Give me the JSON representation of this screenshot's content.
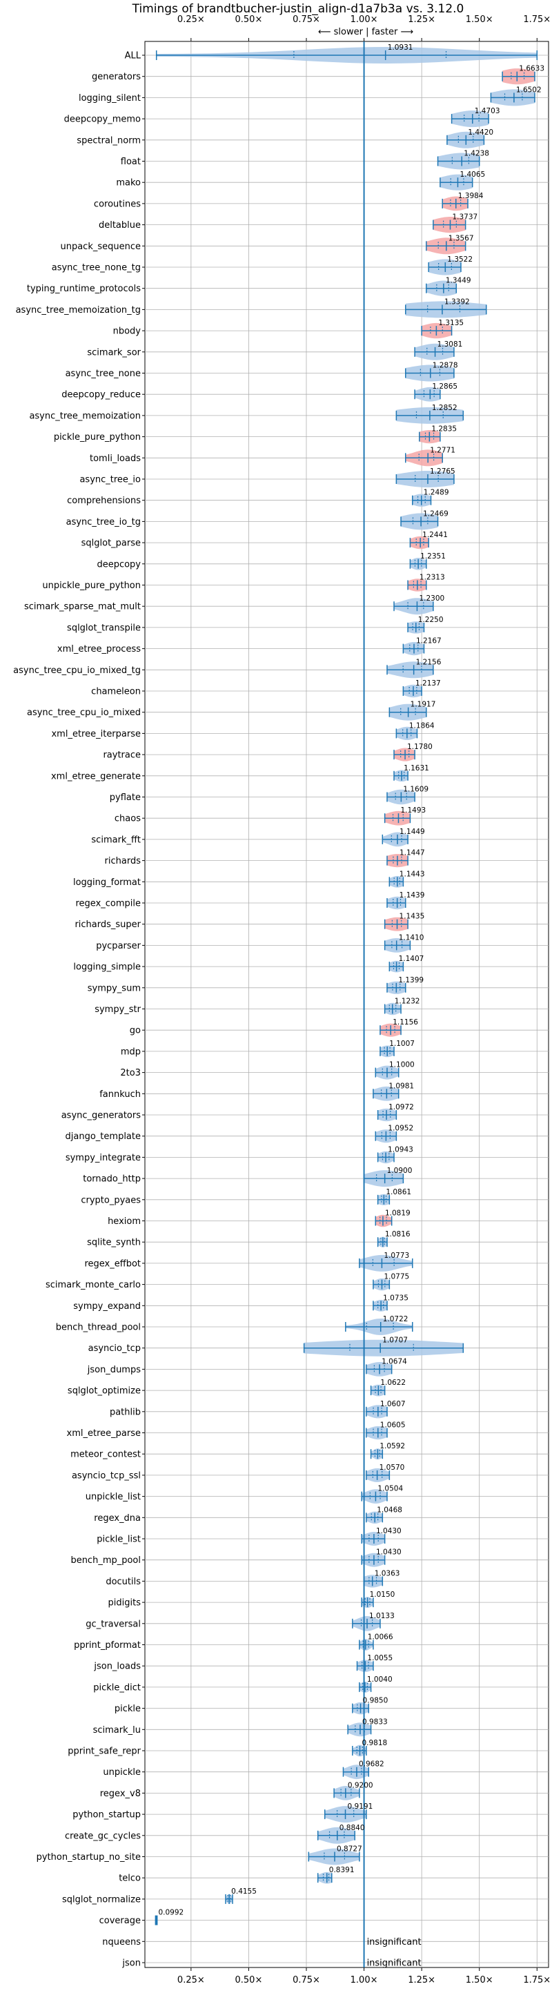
{
  "chart_data": {
    "type": "violin",
    "title": "Timings of brandtbucher-justin_align-d1a7b3a vs. 3.12.0",
    "subtitle": "⟵ slower  |  faster ⟶",
    "xlim": [
      0.05,
      1.8
    ],
    "xticks": [
      0.25,
      0.5,
      0.75,
      1.0,
      1.25,
      1.5,
      1.75
    ],
    "xtick_labels": [
      "0.25×",
      "0.50×",
      "0.75×",
      "1.00×",
      "1.25×",
      "1.50×",
      "1.75×"
    ],
    "reference_line": 1.0,
    "grid": true,
    "colors": {
      "violin": "#a9c8e8",
      "significant": "#f4a6a6",
      "line": "#1f77b4",
      "grid": "#b0b0b0"
    },
    "insignificant_label": "insignificant",
    "benchmarks": [
      {
        "name": "ALL",
        "value": 1.0931,
        "label": "1.0931",
        "min": 0.1,
        "max": 1.75,
        "spread": 0.35,
        "hl": false
      },
      {
        "name": "generators",
        "value": 1.6633,
        "label": "1.6633",
        "min": 1.6,
        "max": 1.74,
        "spread": 0.07,
        "hl": true
      },
      {
        "name": "logging_silent",
        "value": 1.6502,
        "label": "1.6502",
        "min": 1.55,
        "max": 1.74,
        "spread": 0.09,
        "hl": false
      },
      {
        "name": "deepcopy_memo",
        "value": 1.4703,
        "label": "1.4703",
        "min": 1.38,
        "max": 1.54,
        "spread": 0.08,
        "hl": false
      },
      {
        "name": "spectral_norm",
        "value": 1.442,
        "label": "1.4420",
        "min": 1.36,
        "max": 1.52,
        "spread": 0.07,
        "hl": false
      },
      {
        "name": "float",
        "value": 1.4238,
        "label": "1.4238",
        "min": 1.32,
        "max": 1.5,
        "spread": 0.09,
        "hl": false
      },
      {
        "name": "mako",
        "value": 1.4065,
        "label": "1.4065",
        "min": 1.33,
        "max": 1.47,
        "spread": 0.07,
        "hl": false
      },
      {
        "name": "coroutines",
        "value": 1.3984,
        "label": "1.3984",
        "min": 1.34,
        "max": 1.45,
        "spread": 0.05,
        "hl": true
      },
      {
        "name": "deltablue",
        "value": 1.3737,
        "label": "1.3737",
        "min": 1.3,
        "max": 1.44,
        "spread": 0.07,
        "hl": true
      },
      {
        "name": "unpack_sequence",
        "value": 1.3567,
        "label": "1.3567",
        "min": 1.27,
        "max": 1.44,
        "spread": 0.07,
        "hl": true
      },
      {
        "name": "async_tree_none_tg",
        "value": 1.3522,
        "label": "1.3522",
        "min": 1.28,
        "max": 1.42,
        "spread": 0.07,
        "hl": false
      },
      {
        "name": "typing_runtime_protocols",
        "value": 1.3449,
        "label": "1.3449",
        "min": 1.27,
        "max": 1.4,
        "spread": 0.06,
        "hl": false
      },
      {
        "name": "async_tree_memoization_tg",
        "value": 1.3392,
        "label": "1.3392",
        "min": 1.18,
        "max": 1.53,
        "spread": 0.18,
        "hl": false
      },
      {
        "name": "nbody",
        "value": 1.3135,
        "label": "1.3135",
        "min": 1.25,
        "max": 1.38,
        "spread": 0.06,
        "hl": true
      },
      {
        "name": "scimark_sor",
        "value": 1.3081,
        "label": "1.3081",
        "min": 1.22,
        "max": 1.39,
        "spread": 0.07,
        "hl": false
      },
      {
        "name": "async_tree_none",
        "value": 1.2878,
        "label": "1.2878",
        "min": 1.18,
        "max": 1.39,
        "spread": 0.1,
        "hl": false
      },
      {
        "name": "deepcopy_reduce",
        "value": 1.2865,
        "label": "1.2865",
        "min": 1.22,
        "max": 1.33,
        "spread": 0.05,
        "hl": false
      },
      {
        "name": "async_tree_memoization",
        "value": 1.2852,
        "label": "1.2852",
        "min": 1.14,
        "max": 1.43,
        "spread": 0.15,
        "hl": false
      },
      {
        "name": "pickle_pure_python",
        "value": 1.2835,
        "label": "1.2835",
        "min": 1.24,
        "max": 1.33,
        "spread": 0.05,
        "hl": true
      },
      {
        "name": "tomli_loads",
        "value": 1.2771,
        "label": "1.2771",
        "min": 1.18,
        "max": 1.34,
        "spread": 0.06,
        "hl": true
      },
      {
        "name": "async_tree_io",
        "value": 1.2765,
        "label": "1.2765",
        "min": 1.14,
        "max": 1.39,
        "spread": 0.12,
        "hl": false
      },
      {
        "name": "comprehensions",
        "value": 1.2489,
        "label": "1.2489",
        "min": 1.21,
        "max": 1.29,
        "spread": 0.04,
        "hl": false
      },
      {
        "name": "async_tree_io_tg",
        "value": 1.2469,
        "label": "1.2469",
        "min": 1.16,
        "max": 1.32,
        "spread": 0.08,
        "hl": false
      },
      {
        "name": "sqlglot_parse",
        "value": 1.2441,
        "label": "1.2441",
        "min": 1.2,
        "max": 1.28,
        "spread": 0.04,
        "hl": true
      },
      {
        "name": "deepcopy",
        "value": 1.2351,
        "label": "1.2351",
        "min": 1.2,
        "max": 1.27,
        "spread": 0.03,
        "hl": false
      },
      {
        "name": "unpickle_pure_python",
        "value": 1.2313,
        "label": "1.2313",
        "min": 1.19,
        "max": 1.27,
        "spread": 0.04,
        "hl": true
      },
      {
        "name": "scimark_sparse_mat_mult",
        "value": 1.23,
        "label": "1.2300",
        "min": 1.13,
        "max": 1.3,
        "spread": 0.06,
        "hl": false
      },
      {
        "name": "sqlglot_transpile",
        "value": 1.225,
        "label": "1.2250",
        "min": 1.19,
        "max": 1.26,
        "spread": 0.04,
        "hl": false
      },
      {
        "name": "xml_etree_process",
        "value": 1.2167,
        "label": "1.2167",
        "min": 1.17,
        "max": 1.26,
        "spread": 0.04,
        "hl": false
      },
      {
        "name": "async_tree_cpu_io_mixed_tg",
        "value": 1.2156,
        "label": "1.2156",
        "min": 1.1,
        "max": 1.3,
        "spread": 0.08,
        "hl": false
      },
      {
        "name": "chameleon",
        "value": 1.2137,
        "label": "1.2137",
        "min": 1.17,
        "max": 1.25,
        "spread": 0.04,
        "hl": false
      },
      {
        "name": "async_tree_cpu_io_mixed",
        "value": 1.1917,
        "label": "1.1917",
        "min": 1.11,
        "max": 1.27,
        "spread": 0.07,
        "hl": false
      },
      {
        "name": "xml_etree_iterparse",
        "value": 1.1864,
        "label": "1.1864",
        "min": 1.14,
        "max": 1.23,
        "spread": 0.04,
        "hl": false
      },
      {
        "name": "raytrace",
        "value": 1.178,
        "label": "1.1780",
        "min": 1.13,
        "max": 1.22,
        "spread": 0.04,
        "hl": true
      },
      {
        "name": "xml_etree_generate",
        "value": 1.1631,
        "label": "1.1631",
        "min": 1.13,
        "max": 1.19,
        "spread": 0.03,
        "hl": false
      },
      {
        "name": "pyflate",
        "value": 1.1609,
        "label": "1.1609",
        "min": 1.1,
        "max": 1.22,
        "spread": 0.05,
        "hl": false
      },
      {
        "name": "chaos",
        "value": 1.1493,
        "label": "1.1493",
        "min": 1.09,
        "max": 1.2,
        "spread": 0.05,
        "hl": true
      },
      {
        "name": "scimark_fft",
        "value": 1.1449,
        "label": "1.1449",
        "min": 1.08,
        "max": 1.19,
        "spread": 0.04,
        "hl": false
      },
      {
        "name": "richards",
        "value": 1.1447,
        "label": "1.1447",
        "min": 1.1,
        "max": 1.19,
        "spread": 0.05,
        "hl": true
      },
      {
        "name": "logging_format",
        "value": 1.1443,
        "label": "1.1443",
        "min": 1.11,
        "max": 1.17,
        "spread": 0.03,
        "hl": false
      },
      {
        "name": "regex_compile",
        "value": 1.1439,
        "label": "1.1439",
        "min": 1.1,
        "max": 1.18,
        "spread": 0.04,
        "hl": false
      },
      {
        "name": "richards_super",
        "value": 1.1435,
        "label": "1.1435",
        "min": 1.09,
        "max": 1.19,
        "spread": 0.05,
        "hl": true
      },
      {
        "name": "pycparser",
        "value": 1.141,
        "label": "1.1410",
        "min": 1.09,
        "max": 1.2,
        "spread": 0.05,
        "hl": false
      },
      {
        "name": "logging_simple",
        "value": 1.1407,
        "label": "1.1407",
        "min": 1.11,
        "max": 1.17,
        "spread": 0.03,
        "hl": false
      },
      {
        "name": "sympy_sum",
        "value": 1.1399,
        "label": "1.1399",
        "min": 1.1,
        "max": 1.18,
        "spread": 0.04,
        "hl": false
      },
      {
        "name": "sympy_str",
        "value": 1.1232,
        "label": "1.1232",
        "min": 1.09,
        "max": 1.16,
        "spread": 0.03,
        "hl": false
      },
      {
        "name": "go",
        "value": 1.1156,
        "label": "1.1156",
        "min": 1.07,
        "max": 1.16,
        "spread": 0.04,
        "hl": true
      },
      {
        "name": "mdp",
        "value": 1.1007,
        "label": "1.1007",
        "min": 1.07,
        "max": 1.13,
        "spread": 0.03,
        "hl": false
      },
      {
        "name": "2to3",
        "value": 1.1,
        "label": "1.1000",
        "min": 1.05,
        "max": 1.15,
        "spread": 0.04,
        "hl": false
      },
      {
        "name": "fannkuch",
        "value": 1.0981,
        "label": "1.0981",
        "min": 1.04,
        "max": 1.15,
        "spread": 0.05,
        "hl": false
      },
      {
        "name": "async_generators",
        "value": 1.0972,
        "label": "1.0972",
        "min": 1.06,
        "max": 1.14,
        "spread": 0.04,
        "hl": false
      },
      {
        "name": "django_template",
        "value": 1.0952,
        "label": "1.0952",
        "min": 1.05,
        "max": 1.14,
        "spread": 0.04,
        "hl": false
      },
      {
        "name": "sympy_integrate",
        "value": 1.0943,
        "label": "1.0943",
        "min": 1.06,
        "max": 1.13,
        "spread": 0.03,
        "hl": false
      },
      {
        "name": "tornado_http",
        "value": 1.09,
        "label": "1.0900",
        "min": 1.0,
        "max": 1.17,
        "spread": 0.07,
        "hl": false
      },
      {
        "name": "crypto_pyaes",
        "value": 1.0861,
        "label": "1.0861",
        "min": 1.06,
        "max": 1.11,
        "spread": 0.03,
        "hl": false
      },
      {
        "name": "hexiom",
        "value": 1.0819,
        "label": "1.0819",
        "min": 1.05,
        "max": 1.12,
        "spread": 0.03,
        "hl": true
      },
      {
        "name": "sqlite_synth",
        "value": 1.0816,
        "label": "1.0816",
        "min": 1.06,
        "max": 1.1,
        "spread": 0.02,
        "hl": false
      },
      {
        "name": "regex_effbot",
        "value": 1.0773,
        "label": "1.0773",
        "min": 0.98,
        "max": 1.21,
        "spread": 0.07,
        "hl": false
      },
      {
        "name": "scimark_monte_carlo",
        "value": 1.0775,
        "label": "1.0775",
        "min": 1.04,
        "max": 1.11,
        "spread": 0.03,
        "hl": false
      },
      {
        "name": "sympy_expand",
        "value": 1.0735,
        "label": "1.0735",
        "min": 1.04,
        "max": 1.1,
        "spread": 0.03,
        "hl": false
      },
      {
        "name": "bench_thread_pool",
        "value": 1.0722,
        "label": "1.0722",
        "min": 0.92,
        "max": 1.21,
        "spread": 0.06,
        "hl": false
      },
      {
        "name": "asyncio_tcp",
        "value": 1.0707,
        "label": "1.0707",
        "min": 0.74,
        "max": 1.43,
        "spread": 0.32,
        "hl": false
      },
      {
        "name": "json_dumps",
        "value": 1.0674,
        "label": "1.0674",
        "min": 1.01,
        "max": 1.12,
        "spread": 0.05,
        "hl": false
      },
      {
        "name": "sqlglot_optimize",
        "value": 1.0622,
        "label": "1.0622",
        "min": 1.03,
        "max": 1.09,
        "spread": 0.03,
        "hl": false
      },
      {
        "name": "pathlib",
        "value": 1.0607,
        "label": "1.0607",
        "min": 1.01,
        "max": 1.1,
        "spread": 0.04,
        "hl": false
      },
      {
        "name": "xml_etree_parse",
        "value": 1.0605,
        "label": "1.0605",
        "min": 1.01,
        "max": 1.1,
        "spread": 0.04,
        "hl": false
      },
      {
        "name": "meteor_contest",
        "value": 1.0592,
        "label": "1.0592",
        "min": 1.03,
        "max": 1.08,
        "spread": 0.02,
        "hl": false
      },
      {
        "name": "asyncio_tcp_ssl",
        "value": 1.057,
        "label": "1.0570",
        "min": 1.01,
        "max": 1.11,
        "spread": 0.04,
        "hl": false
      },
      {
        "name": "unpickle_list",
        "value": 1.0504,
        "label": "1.0504",
        "min": 0.99,
        "max": 1.1,
        "spread": 0.04,
        "hl": false
      },
      {
        "name": "regex_dna",
        "value": 1.0468,
        "label": "1.0468",
        "min": 1.01,
        "max": 1.08,
        "spread": 0.03,
        "hl": false
      },
      {
        "name": "pickle_list",
        "value": 1.043,
        "label": "1.0430",
        "min": 0.99,
        "max": 1.09,
        "spread": 0.04,
        "hl": false
      },
      {
        "name": "bench_mp_pool",
        "value": 1.043,
        "label": "1.0430",
        "min": 0.99,
        "max": 1.09,
        "spread": 0.04,
        "hl": false
      },
      {
        "name": "docutils",
        "value": 1.0363,
        "label": "1.0363",
        "min": 1.0,
        "max": 1.08,
        "spread": 0.04,
        "hl": false
      },
      {
        "name": "pidigits",
        "value": 1.015,
        "label": "1.0150",
        "min": 0.99,
        "max": 1.04,
        "spread": 0.02,
        "hl": false
      },
      {
        "name": "gc_traversal",
        "value": 1.0133,
        "label": "1.0133",
        "min": 0.95,
        "max": 1.07,
        "spread": 0.04,
        "hl": false
      },
      {
        "name": "pprint_pformat",
        "value": 1.0066,
        "label": "1.0066",
        "min": 0.98,
        "max": 1.04,
        "spread": 0.02,
        "hl": false
      },
      {
        "name": "json_loads",
        "value": 1.0055,
        "label": "1.0055",
        "min": 0.97,
        "max": 1.04,
        "spread": 0.03,
        "hl": false
      },
      {
        "name": "pickle_dict",
        "value": 1.004,
        "label": "1.0040",
        "min": 0.98,
        "max": 1.03,
        "spread": 0.02,
        "hl": false
      },
      {
        "name": "pickle",
        "value": 0.985,
        "label": "0.9850",
        "min": 0.95,
        "max": 1.02,
        "spread": 0.03,
        "hl": false
      },
      {
        "name": "scimark_lu",
        "value": 0.9833,
        "label": "0.9833",
        "min": 0.93,
        "max": 1.03,
        "spread": 0.04,
        "hl": false
      },
      {
        "name": "pprint_safe_repr",
        "value": 0.9818,
        "label": "0.9818",
        "min": 0.95,
        "max": 1.01,
        "spread": 0.02,
        "hl": false
      },
      {
        "name": "unpickle",
        "value": 0.9682,
        "label": "0.9682",
        "min": 0.91,
        "max": 1.02,
        "spread": 0.04,
        "hl": false
      },
      {
        "name": "regex_v8",
        "value": 0.92,
        "label": "0.9200",
        "min": 0.87,
        "max": 0.98,
        "spread": 0.04,
        "hl": false
      },
      {
        "name": "python_startup",
        "value": 0.9191,
        "label": "0.9191",
        "min": 0.83,
        "max": 1.01,
        "spread": 0.06,
        "hl": false
      },
      {
        "name": "create_gc_cycles",
        "value": 0.884,
        "label": "0.8840",
        "min": 0.8,
        "max": 0.96,
        "spread": 0.06,
        "hl": false
      },
      {
        "name": "python_startup_no_site",
        "value": 0.8727,
        "label": "0.8727",
        "min": 0.76,
        "max": 0.98,
        "spread": 0.07,
        "hl": false
      },
      {
        "name": "telco",
        "value": 0.8391,
        "label": "0.8391",
        "min": 0.8,
        "max": 0.86,
        "spread": 0.03,
        "hl": false
      },
      {
        "name": "sqlglot_normalize",
        "value": 0.4155,
        "label": "0.4155",
        "min": 0.4,
        "max": 0.43,
        "spread": 0.01,
        "hl": false
      },
      {
        "name": "coverage",
        "value": 0.0992,
        "label": "0.0992",
        "min": 0.096,
        "max": 0.103,
        "spread": 0.004,
        "hl": false
      },
      {
        "name": "nqueens",
        "value": null,
        "label": "",
        "insignificant": true
      },
      {
        "name": "json",
        "value": null,
        "label": "",
        "insignificant": true
      }
    ]
  }
}
